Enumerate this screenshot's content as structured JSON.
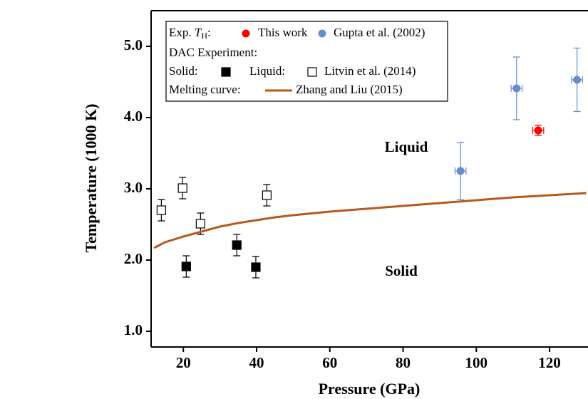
{
  "chart_data": {
    "type": "scatter",
    "xlabel": "Pressure (GPa)",
    "ylabel": "Temperature (1000 K)",
    "xlim": [
      11.2,
      130.5
    ],
    "ylim": [
      0.78,
      5.5
    ],
    "xticks": [
      20,
      40,
      60,
      80,
      100,
      120
    ],
    "yticks": [
      {
        "value": 1,
        "label": "1.0"
      },
      {
        "value": 2,
        "label": "2.0"
      },
      {
        "value": 3,
        "label": "3.0"
      },
      {
        "value": 4,
        "label": "4.0"
      },
      {
        "value": 5,
        "label": "5.0"
      }
    ],
    "legend_exp": [
      "Exp. ",
      "T",
      "H",
      ":"
    ],
    "legend_dac": "DAC Experiment:",
    "legend_litvin": "Litvin et al. (2014)",
    "legend_melting": "Melting curve:",
    "annotations": [
      "Liquid",
      "Solid"
    ],
    "series": [
      {
        "name": "Solid:",
        "marker": "square",
        "filled": true,
        "color": "#000000",
        "x": [
          20.8,
          34.6,
          39.8
        ],
        "values": [
          1.91,
          2.21,
          1.9
        ],
        "errors": [
          0.15,
          0.15,
          0.15
        ]
      },
      {
        "name": "Liquid:",
        "marker": "square",
        "filled": false,
        "color": "#000000",
        "x": [
          14,
          19.8,
          24.7,
          42.8
        ],
        "values": [
          2.7,
          3.01,
          2.51,
          2.91
        ],
        "errors": [
          0.15,
          0.15,
          0.15,
          0.15
        ]
      },
      {
        "name": "This work",
        "marker": "circle",
        "filled": true,
        "color": "#ff0000",
        "x": [
          116.9
        ],
        "values": [
          3.82
        ],
        "errors": [
          0.07
        ],
        "xerrors": [
          1.5
        ]
      },
      {
        "name": "Gupta et al.  (2002)",
        "marker": "circle",
        "filled": true,
        "color": "#6a8ccb",
        "x": [
          95.7,
          111,
          127.5
        ],
        "values": [
          3.25,
          4.41,
          4.53
        ],
        "errors": [
          0.4,
          0.44,
          0.445
        ],
        "xerrors": [
          1.5,
          1.5,
          1.5
        ]
      },
      {
        "name": "Zhang and Liu (2015)",
        "marker": "line",
        "color": "#b45a1e",
        "x": [
          12,
          15,
          20,
          25,
          30,
          35,
          40,
          45,
          50,
          60,
          70,
          80,
          90,
          100,
          110,
          120,
          130
        ],
        "values": [
          2.17,
          2.25,
          2.33,
          2.4,
          2.47,
          2.52,
          2.56,
          2.6,
          2.63,
          2.68,
          2.72,
          2.76,
          2.8,
          2.84,
          2.88,
          2.91,
          2.94
        ]
      }
    ]
  }
}
